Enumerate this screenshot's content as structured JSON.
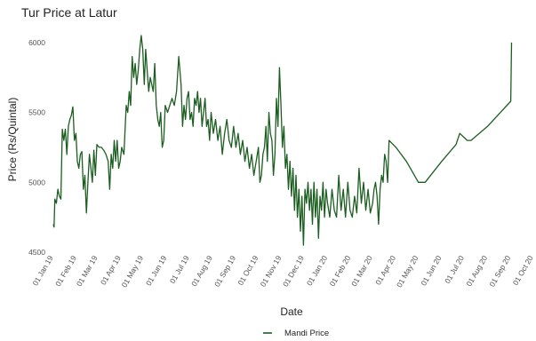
{
  "chart_data": {
    "type": "line",
    "title": "Tur Price at Latur",
    "xlabel": "Date",
    "ylabel": "Price (Rs/Quintal)",
    "xlim": [
      "2019-01-01",
      "2020-10-01"
    ],
    "ylim": [
      4500,
      6050
    ],
    "y_ticks": [
      4500,
      5000,
      5500,
      6000
    ],
    "x_tick_labels": [
      "01 Jan 19",
      "01 Feb 19",
      "01 Mar 19",
      "01 Apr 19",
      "01 May 19",
      "01 Jun 19",
      "01 Jul 19",
      "01 Aug 19",
      "01 Sep 19",
      "01 Oct 19",
      "01 Nov 19",
      "01 Dec 19",
      "01 Jan 20",
      "01 Feb 20",
      "01 Mar 20",
      "01 Apr 20",
      "01 May 20",
      "01 Jun 20",
      "01 Jul 20",
      "01 Aug 20",
      "01 Sep 20",
      "01 Oct 20"
    ],
    "grid": false,
    "legend_position": "bottom",
    "series": [
      {
        "name": "Mandi Price",
        "color": "#1b5e20",
        "points": [
          [
            "2019-01-01",
            4700
          ],
          [
            "2019-01-02",
            4680
          ],
          [
            "2019-01-03",
            4880
          ],
          [
            "2019-01-05",
            4850
          ],
          [
            "2019-01-07",
            4950
          ],
          [
            "2019-01-09",
            4900
          ],
          [
            "2019-01-11",
            4880
          ],
          [
            "2019-01-13",
            5380
          ],
          [
            "2019-01-15",
            5300
          ],
          [
            "2019-01-17",
            5380
          ],
          [
            "2019-01-19",
            5200
          ],
          [
            "2019-01-21",
            5400
          ],
          [
            "2019-01-23",
            5450
          ],
          [
            "2019-01-25",
            5480
          ],
          [
            "2019-01-27",
            5540
          ],
          [
            "2019-01-29",
            5300
          ],
          [
            "2019-01-31",
            5350
          ],
          [
            "2019-02-02",
            5150
          ],
          [
            "2019-02-04",
            5100
          ],
          [
            "2019-02-06",
            5200
          ],
          [
            "2019-02-08",
            5220
          ],
          [
            "2019-02-10",
            4950
          ],
          [
            "2019-02-12",
            5050
          ],
          [
            "2019-02-14",
            4780
          ],
          [
            "2019-02-16",
            5000
          ],
          [
            "2019-02-18",
            5200
          ],
          [
            "2019-02-20",
            5100
          ],
          [
            "2019-02-22",
            5000
          ],
          [
            "2019-02-24",
            5230
          ],
          [
            "2019-02-26",
            5050
          ],
          [
            "2019-02-28",
            5270
          ],
          [
            "2019-03-03",
            5250
          ],
          [
            "2019-03-06",
            5250
          ],
          [
            "2019-03-09",
            5230
          ],
          [
            "2019-03-12",
            5200
          ],
          [
            "2019-03-15",
            5150
          ],
          [
            "2019-03-17",
            4950
          ],
          [
            "2019-03-19",
            5200
          ],
          [
            "2019-03-21",
            5100
          ],
          [
            "2019-03-23",
            5300
          ],
          [
            "2019-03-25",
            5150
          ],
          [
            "2019-03-27",
            5300
          ],
          [
            "2019-03-29",
            5100
          ],
          [
            "2019-03-31",
            5150
          ],
          [
            "2019-04-02",
            5250
          ],
          [
            "2019-04-05",
            5200
          ],
          [
            "2019-04-08",
            5550
          ],
          [
            "2019-04-10",
            5500
          ],
          [
            "2019-04-12",
            5650
          ],
          [
            "2019-04-14",
            5550
          ],
          [
            "2019-04-16",
            5900
          ],
          [
            "2019-04-18",
            5750
          ],
          [
            "2019-04-20",
            5850
          ],
          [
            "2019-04-22",
            5700
          ],
          [
            "2019-04-24",
            5800
          ],
          [
            "2019-04-26",
            5950
          ],
          [
            "2019-04-28",
            6050
          ],
          [
            "2019-04-30",
            5950
          ],
          [
            "2019-05-02",
            5700
          ],
          [
            "2019-05-04",
            5950
          ],
          [
            "2019-05-06",
            5800
          ],
          [
            "2019-05-08",
            5650
          ],
          [
            "2019-05-10",
            5750
          ],
          [
            "2019-05-12",
            5700
          ],
          [
            "2019-05-14",
            5650
          ],
          [
            "2019-05-16",
            5850
          ],
          [
            "2019-05-18",
            5550
          ],
          [
            "2019-05-20",
            5450
          ],
          [
            "2019-05-22",
            5400
          ],
          [
            "2019-05-24",
            5500
          ],
          [
            "2019-05-26",
            5250
          ],
          [
            "2019-05-28",
            5300
          ],
          [
            "2019-05-30",
            5550
          ],
          [
            "2019-06-02",
            5500
          ],
          [
            "2019-06-05",
            5550
          ],
          [
            "2019-06-08",
            5600
          ],
          [
            "2019-06-11",
            5550
          ],
          [
            "2019-06-14",
            5650
          ],
          [
            "2019-06-17",
            5900
          ],
          [
            "2019-06-20",
            5700
          ],
          [
            "2019-06-22",
            5400
          ],
          [
            "2019-06-24",
            5550
          ],
          [
            "2019-06-26",
            5450
          ],
          [
            "2019-06-28",
            5600
          ],
          [
            "2019-06-30",
            5650
          ],
          [
            "2019-07-02",
            5450
          ],
          [
            "2019-07-04",
            5500
          ],
          [
            "2019-07-06",
            5400
          ],
          [
            "2019-07-08",
            5600
          ],
          [
            "2019-07-10",
            5550
          ],
          [
            "2019-07-12",
            5650
          ],
          [
            "2019-07-14",
            5500
          ],
          [
            "2019-07-16",
            5600
          ],
          [
            "2019-07-18",
            5400
          ],
          [
            "2019-07-20",
            5500
          ],
          [
            "2019-07-22",
            5600
          ],
          [
            "2019-07-24",
            5400
          ],
          [
            "2019-07-26",
            5450
          ],
          [
            "2019-07-28",
            5300
          ],
          [
            "2019-07-30",
            5500
          ],
          [
            "2019-08-02",
            5350
          ],
          [
            "2019-08-05",
            5450
          ],
          [
            "2019-08-08",
            5300
          ],
          [
            "2019-08-11",
            5400
          ],
          [
            "2019-08-14",
            5200
          ],
          [
            "2019-08-17",
            5350
          ],
          [
            "2019-08-20",
            5450
          ],
          [
            "2019-08-23",
            5300
          ],
          [
            "2019-08-26",
            5250
          ],
          [
            "2019-08-29",
            5400
          ],
          [
            "2019-09-01",
            5250
          ],
          [
            "2019-09-04",
            5350
          ],
          [
            "2019-09-07",
            5200
          ],
          [
            "2019-09-10",
            5300
          ],
          [
            "2019-09-13",
            5150
          ],
          [
            "2019-09-16",
            5250
          ],
          [
            "2019-09-19",
            5100
          ],
          [
            "2019-09-22",
            5200
          ],
          [
            "2019-09-25",
            5050
          ],
          [
            "2019-09-28",
            5150
          ],
          [
            "2019-10-01",
            5250
          ],
          [
            "2019-10-03",
            5000
          ],
          [
            "2019-10-05",
            5050
          ],
          [
            "2019-10-07",
            5200
          ],
          [
            "2019-10-09",
            5250
          ],
          [
            "2019-10-11",
            5400
          ],
          [
            "2019-10-13",
            5150
          ],
          [
            "2019-10-15",
            5500
          ],
          [
            "2019-10-17",
            5350
          ],
          [
            "2019-10-19",
            5300
          ],
          [
            "2019-10-21",
            5050
          ],
          [
            "2019-10-23",
            5200
          ],
          [
            "2019-10-25",
            5600
          ],
          [
            "2019-10-27",
            5400
          ],
          [
            "2019-10-29",
            5820
          ],
          [
            "2019-10-31",
            5550
          ],
          [
            "2019-11-02",
            5250
          ],
          [
            "2019-11-04",
            5400
          ],
          [
            "2019-11-06",
            5100
          ],
          [
            "2019-11-08",
            5200
          ],
          [
            "2019-11-10",
            4950
          ],
          [
            "2019-11-12",
            5150
          ],
          [
            "2019-11-14",
            4900
          ],
          [
            "2019-11-16",
            5100
          ],
          [
            "2019-11-18",
            4800
          ],
          [
            "2019-11-20",
            5050
          ],
          [
            "2019-11-22",
            4750
          ],
          [
            "2019-11-24",
            4950
          ],
          [
            "2019-11-26",
            4650
          ],
          [
            "2019-11-28",
            4900
          ],
          [
            "2019-11-30",
            4550
          ],
          [
            "2019-12-02",
            4950
          ],
          [
            "2019-12-04",
            4850
          ],
          [
            "2019-12-06",
            5000
          ],
          [
            "2019-12-08",
            4800
          ],
          [
            "2019-12-10",
            4950
          ],
          [
            "2019-12-12",
            4700
          ],
          [
            "2019-12-14",
            5000
          ],
          [
            "2019-12-16",
            4750
          ],
          [
            "2019-12-18",
            4950
          ],
          [
            "2019-12-20",
            4600
          ],
          [
            "2019-12-22",
            4900
          ],
          [
            "2019-12-24",
            4800
          ],
          [
            "2019-12-26",
            5000
          ],
          [
            "2019-12-28",
            4750
          ],
          [
            "2019-12-30",
            4950
          ],
          [
            "2020-01-01",
            4850
          ],
          [
            "2020-01-04",
            4750
          ],
          [
            "2020-01-07",
            4950
          ],
          [
            "2020-01-10",
            4800
          ],
          [
            "2020-01-13",
            4750
          ],
          [
            "2020-01-16",
            5050
          ],
          [
            "2020-01-19",
            4800
          ],
          [
            "2020-01-22",
            4950
          ],
          [
            "2020-01-25",
            4750
          ],
          [
            "2020-01-28",
            5000
          ],
          [
            "2020-01-31",
            4800
          ],
          [
            "2020-02-03",
            4750
          ],
          [
            "2020-02-06",
            4900
          ],
          [
            "2020-02-09",
            4780
          ],
          [
            "2020-02-12",
            5100
          ],
          [
            "2020-02-15",
            4850
          ],
          [
            "2020-02-18",
            5000
          ],
          [
            "2020-02-21",
            4800
          ],
          [
            "2020-02-24",
            4950
          ],
          [
            "2020-02-27",
            4780
          ],
          [
            "2020-03-01",
            4850
          ],
          [
            "2020-03-03",
            4950
          ],
          [
            "2020-03-05",
            5000
          ],
          [
            "2020-03-07",
            4900
          ],
          [
            "2020-03-09",
            4700
          ],
          [
            "2020-03-11",
            4950
          ],
          [
            "2020-03-13",
            5050
          ],
          [
            "2020-03-15",
            5000
          ],
          [
            "2020-03-17",
            5200
          ],
          [
            "2020-03-19",
            5150
          ],
          [
            "2020-03-21",
            5000
          ],
          [
            "2020-03-23",
            5300
          ],
          [
            "2020-04-01",
            5250
          ],
          [
            "2020-04-15",
            5150
          ],
          [
            "2020-05-01",
            5000
          ],
          [
            "2020-05-10",
            5000
          ],
          [
            "2020-06-01",
            5150
          ],
          [
            "2020-06-20",
            5270
          ],
          [
            "2020-06-25",
            5350
          ],
          [
            "2020-07-05",
            5300
          ],
          [
            "2020-07-10",
            5300
          ],
          [
            "2020-08-01",
            5400
          ],
          [
            "2020-09-01",
            5580
          ],
          [
            "2020-09-02",
            6000
          ]
        ]
      }
    ]
  }
}
